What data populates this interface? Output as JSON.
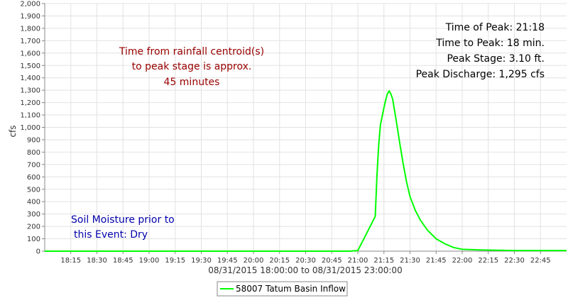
{
  "chart_data": {
    "type": "line",
    "ylabel": "cfs",
    "xlabel": "08/31/2015 18:00:00 to 08/31/2015 23:00:00",
    "ylim": [
      0,
      2000
    ],
    "yticks": [
      "0",
      "100",
      "200",
      "300",
      "400",
      "500",
      "600",
      "700",
      "800",
      "900",
      "1,000",
      "1,100",
      "1,200",
      "1,300",
      "1,400",
      "1,500",
      "1,600",
      "1,700",
      "1,800",
      "1,900",
      "2,000"
    ],
    "xlim": [
      "18:00",
      "23:00"
    ],
    "xticks": [
      "18:15",
      "18:30",
      "18:45",
      "19:00",
      "19:15",
      "19:30",
      "19:45",
      "20:00",
      "20:15",
      "20:30",
      "20:45",
      "21:00",
      "21:15",
      "21:30",
      "21:45",
      "22:00",
      "22:15",
      "22:30",
      "22:45"
    ],
    "grid": true,
    "legend_position": "bottom",
    "series": [
      {
        "name": "58007 Tatum Basin Inflow",
        "color": "#00ff00",
        "x": [
          "18:00",
          "20:55",
          "21:00",
          "21:10",
          "21:11",
          "21:12",
          "21:13",
          "21:14",
          "21:15",
          "21:16",
          "21:17",
          "21:18",
          "21:19",
          "21:20",
          "21:22",
          "21:24",
          "21:26",
          "21:28",
          "21:30",
          "21:33",
          "21:36",
          "21:40",
          "21:45",
          "21:50",
          "21:55",
          "22:00",
          "22:10",
          "22:30",
          "23:00"
        ],
        "values": [
          0,
          0,
          5,
          280,
          620,
          860,
          1020,
          1090,
          1160,
          1220,
          1270,
          1295,
          1270,
          1230,
          1060,
          880,
          710,
          560,
          440,
          330,
          250,
          170,
          100,
          60,
          30,
          15,
          10,
          5,
          5
        ]
      }
    ],
    "annotations": {
      "rainfall_note": [
        "Time from rainfall centroid(s)",
        "to peak stage is approx.",
        "45 minutes"
      ],
      "soil_note": [
        "Soil Moisture prior to",
        "this Event: Dry"
      ],
      "stats": [
        "Time of Peak: 21:18",
        "Time to Peak: 18 min.",
        "Peak Stage: 3.10 ft.",
        "Peak Discharge: 1,295 cfs"
      ]
    }
  },
  "colors": {
    "series_line": "#00ff00",
    "grid": "#e2e2e2",
    "axis": "#888888",
    "rainfall_note": "#990000",
    "soil_note": "#0000aa"
  }
}
